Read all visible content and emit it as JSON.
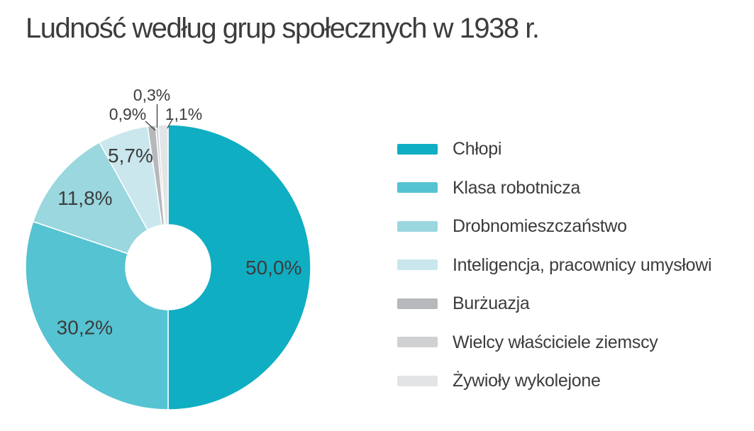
{
  "title": "Ludność według grup społecznych w 1938 r.",
  "chart_data": {
    "type": "pie",
    "subtype": "donut",
    "title": "Ludność według grup społecznych w 1938 r.",
    "unit": "%",
    "decimal_separator": ",",
    "direction": "clockwise",
    "start_angle_deg": 0,
    "legend_position": "right",
    "categories": [
      "Chłopi",
      "Klasa robotnicza",
      "Drobnomieszczaństwo",
      "Inteligencja, pracownicy umysłowi",
      "Burżuazja",
      "Wielcy właściciele ziemscy",
      "Żywioły wykolejone"
    ],
    "values": [
      50.0,
      30.2,
      11.8,
      5.7,
      0.9,
      0.3,
      1.1
    ],
    "labels_display": [
      "50,0%",
      "30,2%",
      "11,8%",
      "5,7%",
      "0,9%",
      "0,3%",
      "1,1%"
    ],
    "colors": [
      "#0FAEC2",
      "#55C3D1",
      "#9AD7DF",
      "#C9E7ED",
      "#B6B8BB",
      "#D0D1D3",
      "#E3E4E6"
    ],
    "label_color": "#3C3C3C",
    "background_color": "#FFFFFF"
  }
}
